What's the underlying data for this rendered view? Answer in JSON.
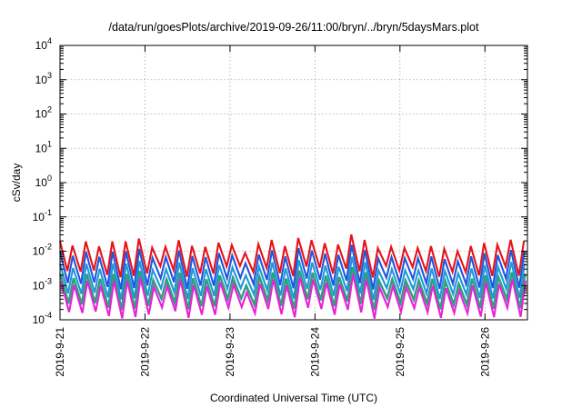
{
  "chart_data": {
    "type": "line",
    "title": "/data/run/goesPlots/archive/2019-09-26/11:00/bryn/../bryn/5daysMars.plot",
    "xlabel": "Coordinated Universal Time (UTC)",
    "ylabel": "cSv/day",
    "x_ticks": [
      "2019-9-21",
      "2019-9-22",
      "2019-9-23",
      "2019-9-24",
      "2019-9-25",
      "2019-9-26"
    ],
    "xlim_days": [
      0,
      5.5
    ],
    "y_scale": "log",
    "ylim": [
      0.0001,
      10000
    ],
    "y_ticks": [
      {
        "base": "10",
        "exp": "-4"
      },
      {
        "base": "10",
        "exp": "-3"
      },
      {
        "base": "10",
        "exp": "-2"
      },
      {
        "base": "10",
        "exp": "-1"
      },
      {
        "base": "10",
        "exp": "0"
      },
      {
        "base": "10",
        "exp": "1"
      },
      {
        "base": "10",
        "exp": "2"
      },
      {
        "base": "10",
        "exp": "3"
      },
      {
        "base": "10",
        "exp": "4"
      }
    ],
    "grid": true,
    "pattern": {
      "cycles_per_day": 6.4,
      "log10_peak": [
        -1.8,
        -2.1,
        -2.45,
        -2.75,
        -2.95
      ],
      "log10_trough": [
        -2.6,
        -2.95,
        -3.25,
        -3.55,
        -3.8
      ]
    },
    "series": [
      {
        "color": "#e8121a",
        "level": 0
      },
      {
        "color": "#2255dd",
        "level": 1
      },
      {
        "color": "#1a9ad8",
        "level": 2
      },
      {
        "color": "#7a3fb0",
        "level": 3
      },
      {
        "color": "#24a878",
        "level": 3
      },
      {
        "color": "#e822d8",
        "level": 4
      }
    ]
  }
}
